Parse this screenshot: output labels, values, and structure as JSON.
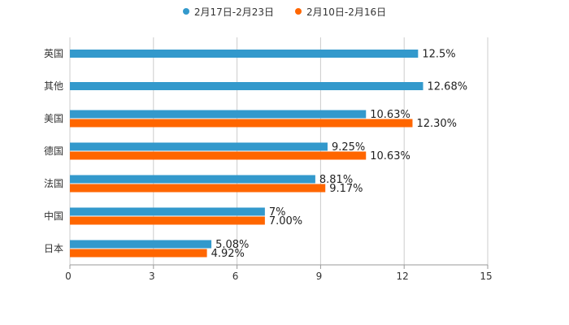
{
  "chart_data": {
    "type": "bar",
    "orientation": "horizontal",
    "categories": [
      "英国",
      "其他",
      "美国",
      "德国",
      "法国",
      "中国",
      "日本"
    ],
    "series": [
      {
        "name": "2月17日-2月23日",
        "color": "#3399cc",
        "values": [
          12.5,
          12.68,
          10.63,
          9.25,
          8.81,
          7,
          5.08
        ],
        "labels": [
          "12.5%",
          "12.68%",
          "10.63%",
          "9.25%",
          "8.81%",
          "7%",
          "5.08%"
        ]
      },
      {
        "name": "2月10日-2月16日",
        "color": "#ff6600",
        "values": [
          null,
          null,
          12.3,
          10.63,
          9.17,
          7.0,
          4.92
        ],
        "labels": [
          null,
          null,
          "12.30%",
          "10.63%",
          "9.17%",
          "7.00%",
          "4.92%"
        ]
      }
    ],
    "xlim": [
      0,
      15
    ],
    "xticks": [
      "0",
      "3",
      "6",
      "9",
      "12",
      "15"
    ],
    "grid": true,
    "legend_position": "top-center"
  }
}
